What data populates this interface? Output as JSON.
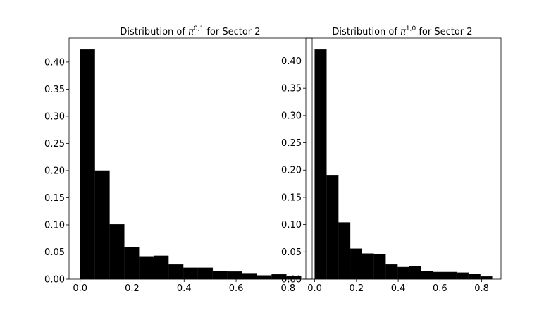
{
  "chart_data": [
    {
      "type": "bar",
      "title": "Distribution of π^{0,1} for Sector 2",
      "title_parts": {
        "prefix": "Distribution of ",
        "symbol": "π",
        "superscript": "0,1",
        "suffix": " for Sector 2"
      },
      "bin_edges": [
        0.0,
        0.0567,
        0.1133,
        0.17,
        0.2267,
        0.2833,
        0.34,
        0.3967,
        0.4533,
        0.51,
        0.5667,
        0.6233,
        0.68,
        0.7367,
        0.7933,
        0.85
      ],
      "values": [
        0.423,
        0.2,
        0.101,
        0.059,
        0.042,
        0.043,
        0.027,
        0.021,
        0.021,
        0.015,
        0.014,
        0.011,
        0.007,
        0.009,
        0.006
      ],
      "xlim": [
        -0.0425,
        0.8925
      ],
      "ylim": [
        0,
        0.444
      ],
      "xticks": [
        0.0,
        0.2,
        0.4,
        0.6,
        0.8
      ],
      "xtick_labels": [
        "0.0",
        "0.2",
        "0.4",
        "0.6",
        "0.8"
      ],
      "yticks": [
        0.0,
        0.05,
        0.1,
        0.15,
        0.2,
        0.25,
        0.3,
        0.35,
        0.4
      ],
      "ytick_labels": [
        "0.00",
        "0.05",
        "0.10",
        "0.15",
        "0.20",
        "0.25",
        "0.30",
        "0.35",
        "0.40"
      ],
      "xlabel": "",
      "ylabel": "",
      "grid": false,
      "bar_color": "#000000"
    },
    {
      "type": "bar",
      "title": "Distribution of π^{1,0} for Sector 2",
      "title_parts": {
        "prefix": "Distribution of ",
        "symbol": "π",
        "superscript": "1,0",
        "suffix": " for Sector 2"
      },
      "bin_edges": [
        0.0,
        0.0567,
        0.1133,
        0.17,
        0.2267,
        0.2833,
        0.34,
        0.3967,
        0.4533,
        0.51,
        0.5667,
        0.6233,
        0.68,
        0.7367,
        0.7933,
        0.85
      ],
      "values": [
        0.421,
        0.191,
        0.104,
        0.056,
        0.047,
        0.046,
        0.027,
        0.022,
        0.024,
        0.015,
        0.013,
        0.013,
        0.012,
        0.01,
        0.005
      ],
      "xlim": [
        -0.0425,
        0.8925
      ],
      "ylim": [
        0,
        0.442
      ],
      "xticks": [
        0.0,
        0.2,
        0.4,
        0.6,
        0.8
      ],
      "xtick_labels": [
        "0.0",
        "0.2",
        "0.4",
        "0.6",
        "0.8"
      ],
      "yticks": [
        0.0,
        0.05,
        0.1,
        0.15,
        0.2,
        0.25,
        0.3,
        0.35,
        0.4
      ],
      "ytick_labels": [
        "0.00",
        "0.05",
        "0.10",
        "0.15",
        "0.20",
        "0.25",
        "0.30",
        "0.35",
        "0.40"
      ],
      "xlabel": "",
      "ylabel": "",
      "grid": false,
      "bar_color": "#000000"
    }
  ]
}
